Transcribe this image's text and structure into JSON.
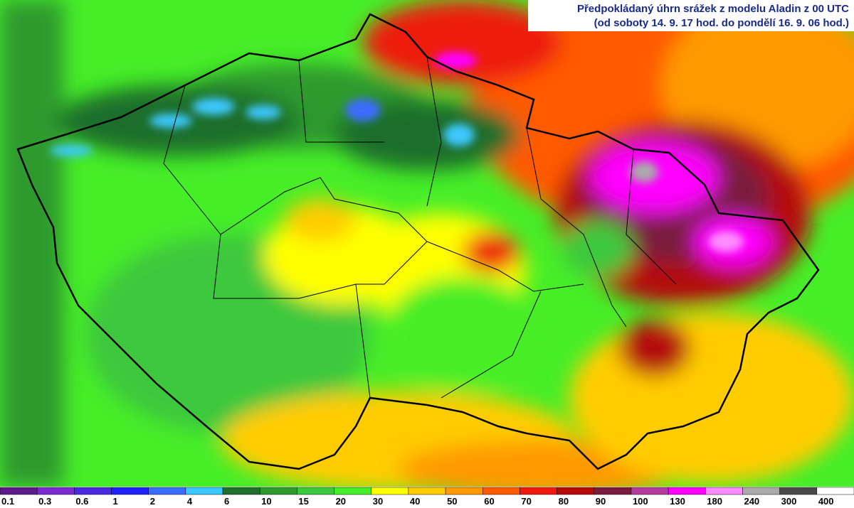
{
  "header": {
    "title_line1": "Předpokládaný úhrn srážek z modelu Aladin z 00 UTC",
    "title_line2": "(od soboty 14. 9. 17 hod. do pondělí 16. 9. 06 hod.)"
  },
  "legend": [
    {
      "label": 0.1,
      "color": "#5c1a8a"
    },
    {
      "label": 0.3,
      "color": "#7a2ad0"
    },
    {
      "label": 0.6,
      "color": "#4a2ae0"
    },
    {
      "label": 1,
      "color": "#2020ff"
    },
    {
      "label": 2,
      "color": "#3c6cff"
    },
    {
      "label": 4,
      "color": "#3cc8ff"
    },
    {
      "label": 6,
      "color": "#1f6e2a"
    },
    {
      "label": 10,
      "color": "#2e9a2e"
    },
    {
      "label": 15,
      "color": "#3cc83c"
    },
    {
      "label": 20,
      "color": "#46ee28"
    },
    {
      "label": 30,
      "color": "#ffff00"
    },
    {
      "label": 40,
      "color": "#ffcc00"
    },
    {
      "label": 50,
      "color": "#ff9a00"
    },
    {
      "label": 60,
      "color": "#ff5a00"
    },
    {
      "label": 70,
      "color": "#ee1a10"
    },
    {
      "label": 80,
      "color": "#b40a0a"
    },
    {
      "label": 90,
      "color": "#7a1a3c"
    },
    {
      "label": 100,
      "color": "#b43ca0"
    },
    {
      "label": 130,
      "color": "#ff00ff"
    },
    {
      "label": 180,
      "color": "#ff8cff"
    },
    {
      "label": 240,
      "color": "#aaaaaa"
    },
    {
      "label": 300,
      "color": "#4a4a4a"
    },
    {
      "label": 400,
      "color": "#ffffff"
    }
  ]
}
